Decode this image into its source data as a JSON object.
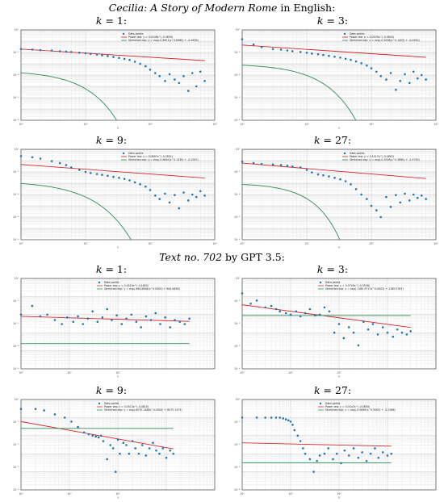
{
  "sections": [
    {
      "title_italic": "Cecilia: A Story of Modern Rome",
      "title_rest": " in English:"
    },
    {
      "title_italic": "Text no. 702",
      "title_rest": " by GPT 3.5:"
    }
  ],
  "colors": {
    "points": "#1f77b4",
    "power_law": "#d62728",
    "stretched_exp": "#2e8b57"
  },
  "chart_data": [
    {
      "type": "scatter",
      "label_prefix": "k = ",
      "k": "1:",
      "xscale": "log",
      "yscale": "log",
      "xlim": [
        1,
        1000
      ],
      "ylim": [
        1e-08,
        1
      ],
      "xticks": [
        "10⁰",
        "10¹",
        "10²",
        "10³"
      ],
      "yticks": [
        "10⁰",
        "10⁻²",
        "10⁻⁴",
        "10⁻⁶",
        "10⁻⁸"
      ],
      "xlabel": "x",
      "legend_position": "top-right",
      "legend": [
        "Data points",
        "Power law: y = 0.0246x^(-0.3639)",
        "Stretched exp: y = exp(-0.9651(x^0.8960) + -0.4639)"
      ],
      "x": [
        1,
        1.5,
        2,
        3,
        4,
        5,
        6,
        8,
        10,
        12,
        15,
        18,
        22,
        27,
        33,
        40,
        48,
        58,
        70,
        85,
        100,
        120,
        140,
        170,
        200,
        240,
        280,
        330,
        390,
        450,
        520,
        600,
        700
      ],
      "y": [
        0.02,
        0.018,
        0.016,
        0.015,
        0.013,
        0.012,
        0.011,
        0.0095,
        0.0085,
        0.0075,
        0.0065,
        0.0055,
        0.0048,
        0.004,
        0.0033,
        0.0027,
        0.0022,
        0.0015,
        0.001,
        0.0006,
        0.0003,
        0.00015,
        8e-05,
        3e-05,
        0.00012,
        4e-05,
        2e-05,
        8e-05,
        4e-06,
        0.00015,
        1e-05,
        0.0002,
        3e-05
      ],
      "power_law": {
        "a": 0.02,
        "b": -0.36
      },
      "stretched_exp": {
        "c": 0.47,
        "beta": 0.9,
        "d": -3.6
      }
    },
    {
      "type": "scatter",
      "label_prefix": "k = ",
      "k": "3:",
      "xscale": "log",
      "yscale": "log",
      "xlim": [
        1,
        1000
      ],
      "ylim": [
        1e-08,
        1
      ],
      "xticks": [
        "10⁰",
        "10¹",
        "10²",
        "10³"
      ],
      "yticks": [
        "10⁰",
        "10⁻²",
        "10⁻⁴",
        "10⁻⁶",
        "10⁻⁸"
      ],
      "xlabel": "x",
      "legend_position": "top-right",
      "legend": [
        "Data points",
        "Power law: y = 0.0535x^(-0.3843)",
        "Stretched exp: y = exp(-0.5098(x^0.1405) + -0.0620)"
      ],
      "x": [
        1,
        1.5,
        2,
        3,
        4,
        5,
        6,
        8,
        10,
        12,
        15,
        18,
        22,
        27,
        33,
        40,
        48,
        58,
        70,
        85,
        100,
        120,
        140,
        170,
        200,
        240,
        280,
        330,
        390,
        450,
        520,
        600,
        700
      ],
      "y": [
        0.15,
        0.05,
        0.03,
        0.02,
        0.018,
        0.015,
        0.013,
        0.011,
        0.0095,
        0.008,
        0.007,
        0.006,
        0.005,
        0.0042,
        0.0035,
        0.0028,
        0.0022,
        0.0016,
        0.0011,
        0.0007,
        0.0004,
        0.0002,
        8e-05,
        4e-05,
        0.00015,
        5e-06,
        3e-05,
        0.00012,
        2e-05,
        0.0002,
        5e-05,
        0.0001,
        4e-05
      ],
      "power_law": {
        "a": 0.045,
        "b": -0.38
      },
      "stretched_exp": {
        "c": 0.3,
        "beta": 0.9,
        "d": -3.0
      }
    },
    {
      "type": "scatter",
      "label_prefix": "k = ",
      "k": "9:",
      "xscale": "log",
      "yscale": "log",
      "xlim": [
        1,
        1000
      ],
      "ylim": [
        1e-08,
        1
      ],
      "xticks": [
        "10⁰",
        "10¹",
        "10²",
        "10³"
      ],
      "yticks": [
        "10⁰",
        "10⁻²",
        "10⁻⁴",
        "10⁻⁶",
        "10⁻⁸"
      ],
      "xlabel": "x",
      "legend_position": "top-right",
      "legend": [
        "Data points",
        "Power law: y = 0.0897x^(-0.4551)",
        "Stretched exp: y = exp(-0.9840(x^0.1330) + -0.2907)"
      ],
      "x": [
        1,
        1.5,
        2,
        3,
        4,
        5,
        6,
        8,
        10,
        12,
        15,
        18,
        22,
        27,
        33,
        40,
        48,
        58,
        70,
        85,
        100,
        120,
        140,
        170,
        200,
        240,
        280,
        330,
        390,
        450,
        520,
        600,
        700
      ],
      "y": [
        0.25,
        0.2,
        0.15,
        0.09,
        0.06,
        0.04,
        0.025,
        0.015,
        0.01,
        0.008,
        0.0065,
        0.0055,
        0.0045,
        0.0036,
        0.003,
        0.0024,
        0.0018,
        0.0012,
        0.0008,
        0.0005,
        0.00025,
        8e-05,
        4e-05,
        0.00012,
        2e-05,
        9e-05,
        6e-06,
        0.00015,
        3e-05,
        0.0001,
        6e-05,
        0.0002,
        8e-05
      ],
      "power_law": {
        "a": 0.045,
        "b": -0.42
      },
      "stretched_exp": {
        "c": 0.52,
        "beta": 0.8,
        "d": -2.8
      }
    },
    {
      "type": "scatter",
      "label_prefix": "k = ",
      "k": "27:",
      "xscale": "log",
      "yscale": "log",
      "xlim": [
        1,
        1000
      ],
      "ylim": [
        1e-08,
        1
      ],
      "xticks": [
        "10⁰",
        "10¹",
        "10²",
        "10³"
      ],
      "yticks": [
        "10⁰",
        "10⁻²",
        "10⁻⁴",
        "10⁻⁶",
        "10⁻⁸"
      ],
      "xlabel": "x",
      "legend_position": "top-right",
      "legend": [
        "Data points",
        "Power law: y = 0.1417x^(-0.4892)",
        "Stretched exp: y = exp(-0.2556(x^0.3660) + -2.9750)"
      ],
      "x": [
        1,
        1.5,
        2,
        3,
        4,
        5,
        6,
        8,
        10,
        12,
        15,
        18,
        22,
        27,
        33,
        40,
        48,
        58,
        70,
        85,
        100,
        120,
        140,
        170,
        200,
        240,
        280,
        330,
        390,
        450,
        520,
        600,
        700
      ],
      "y": [
        0.08,
        0.06,
        0.05,
        0.045,
        0.04,
        0.035,
        0.03,
        0.025,
        0.015,
        0.009,
        0.006,
        0.005,
        0.004,
        0.003,
        0.0022,
        0.0015,
        0.0008,
        0.0003,
        0.0001,
        4e-05,
        1e-05,
        4e-06,
        1e-06,
        6e-05,
        8e-06,
        9e-05,
        2e-05,
        0.00012,
        3e-05,
        0.0001,
        5e-05,
        8e-05,
        4e-05
      ],
      "power_law": {
        "a": 0.06,
        "b": -0.48
      },
      "stretched_exp": {
        "c": 0.25,
        "beta": 1.1,
        "d": -3.0
      }
    },
    {
      "type": "scatter",
      "label_prefix": "k = ",
      "k": "1:",
      "xscale": "log",
      "yscale": "log",
      "xlim": [
        1,
        10000
      ],
      "ylim": [
        0.0001,
        10
      ],
      "xticks": [
        "10⁰",
        "10¹",
        "10²"
      ],
      "yticks": [
        "10⁰",
        "10⁻¹",
        "10⁻²",
        "10⁻³",
        "10⁻⁴"
      ],
      "xlabel": "x",
      "legend_position": "top-right",
      "legend": [
        "Data points",
        "Power law: y = 0.0519x^(-0.1602)",
        "Stretched exp: y = exp(-964.9858(x^0.0000) + 964.9858)"
      ],
      "x": [
        1,
        1.7,
        2.5,
        3.5,
        5,
        7,
        9,
        12,
        15,
        19,
        24,
        30,
        38,
        48,
        60,
        75,
        95,
        120,
        150,
        190,
        240,
        300,
        380,
        480,
        600,
        750,
        950,
        1200,
        1500,
        1900,
        2400,
        3000
      ],
      "y": [
        0.1,
        0.3,
        0.08,
        0.1,
        0.05,
        0.03,
        0.07,
        0.04,
        0.08,
        0.03,
        0.06,
        0.15,
        0.04,
        0.07,
        0.2,
        0.05,
        0.09,
        0.03,
        0.06,
        0.1,
        0.04,
        0.02,
        0.08,
        0.05,
        0.12,
        0.03,
        0.07,
        0.02,
        0.05,
        0.04,
        0.03,
        0.06
      ],
      "power_law": {
        "a": 0.08,
        "b": -0.08
      },
      "stretched_exp": {
        "c": 0,
        "beta": 1,
        "d": -2.6
      }
    },
    {
      "type": "scatter",
      "label_prefix": "k = ",
      "k": "3:",
      "xscale": "log",
      "yscale": "log",
      "xlim": [
        1,
        10000
      ],
      "ylim": [
        0.0001,
        10
      ],
      "xticks": [
        "10⁰",
        "10¹",
        "10²"
      ],
      "yticks": [
        "10⁰",
        "10⁻¹",
        "10⁻²",
        "10⁻³",
        "10⁻⁴"
      ],
      "xlabel": "x",
      "legend_position": "top-right",
      "legend": [
        "Data points",
        "Power law: y = 0.0709x^(-0.3536)",
        "Stretched exp: y = exp(-1185.9717x^0.0003) + 1185.9763)"
      ],
      "x": [
        1,
        1.5,
        2,
        3,
        4,
        5,
        6,
        8,
        10,
        13,
        16,
        20,
        25,
        32,
        40,
        50,
        63,
        80,
        100,
        125,
        160,
        200,
        250,
        320,
        400,
        500,
        630,
        800,
        1000,
        1300,
        1600,
        2000,
        2500,
        3000
      ],
      "y": [
        1.5,
        0.4,
        0.6,
        0.25,
        0.3,
        0.2,
        0.15,
        0.12,
        0.1,
        0.15,
        0.08,
        0.12,
        0.2,
        0.09,
        0.1,
        0.25,
        0.15,
        0.01,
        0.03,
        0.005,
        0.02,
        0.01,
        0.002,
        0.04,
        0.015,
        0.03,
        0.008,
        0.02,
        0.01,
        0.006,
        0.015,
        0.01,
        0.008,
        0.012
      ],
      "power_law": {
        "a": 0.35,
        "b": -0.36
      },
      "stretched_exp": {
        "c": 0,
        "beta": 1,
        "d": -1.05
      }
    },
    {
      "type": "scatter",
      "label_prefix": "k = ",
      "k": "9:",
      "xscale": "log",
      "yscale": "log",
      "xlim": [
        1,
        10000
      ],
      "ylim": [
        0.0001,
        10
      ],
      "xticks": [
        "10⁰",
        "10¹",
        "10²"
      ],
      "yticks": [
        "10⁰",
        "10⁻¹",
        "10⁻²",
        "10⁻³",
        "10⁻⁴"
      ],
      "xlabel": "x",
      "legend_position": "top-right",
      "legend": [
        "Data points",
        "Power law: y = 0.0513x^(-0.4810)",
        "Stretched exp: y = exp(-8070.1486x^0.0000) + 8070.1473)"
      ],
      "x": [
        1,
        2,
        3,
        5,
        8,
        11,
        15,
        20,
        25,
        30,
        35,
        40,
        45,
        50,
        60,
        70,
        80,
        90,
        100,
        110,
        130,
        150,
        170,
        200,
        230,
        270,
        320,
        380,
        450,
        530,
        620,
        720,
        850,
        1000,
        1200,
        1400
      ],
      "y": [
        3,
        3,
        2.5,
        1.5,
        1,
        0.6,
        0.3,
        0.15,
        0.12,
        0.1,
        0.09,
        0.08,
        0.1,
        0.05,
        0.005,
        0.03,
        0.02,
        0.001,
        0.06,
        0.01,
        0.04,
        0.03,
        0.01,
        0.05,
        0.02,
        0.01,
        0.03,
        0.008,
        0.02,
        0.04,
        0.015,
        0.01,
        0.02,
        0.006,
        0.015,
        0.01
      ],
      "power_law": {
        "a": 0.6,
        "b": -0.48
      },
      "stretched_exp": {
        "c": 0,
        "beta": 1,
        "d": -0.6
      }
    },
    {
      "type": "scatter",
      "label_prefix": "k = ",
      "k": "27:",
      "xscale": "log",
      "yscale": "log",
      "xlim": [
        1,
        10000
      ],
      "ylim": [
        0.0001,
        10
      ],
      "xticks": [
        "10⁰",
        "10¹",
        "10²"
      ],
      "yticks": [
        "10⁰",
        "10⁻¹",
        "10⁻²",
        "10⁻³",
        "10⁻⁴"
      ],
      "xlabel": "x",
      "legend_position": "top-right",
      "legend": [
        "Data points",
        "Power law: y = 0.0047x^(-0.0850)",
        "Stretched exp: y = exp(-0.0896(x^0.9500) + -5.2986)"
      ],
      "x": [
        1,
        2,
        3,
        4,
        5,
        6,
        7,
        8,
        9,
        10,
        11,
        12,
        14,
        16,
        18,
        20,
        25,
        30,
        35,
        40,
        50,
        60,
        75,
        90,
        110,
        130,
        160,
        200,
        250,
        300,
        370,
        450,
        550,
        650,
        800,
        1000,
        1200
      ],
      "y": [
        1,
        1,
        1,
        1,
        1,
        1,
        0.9,
        0.8,
        0.7,
        0.6,
        0.4,
        0.2,
        0.1,
        0.05,
        0.02,
        0.01,
        0.005,
        0.001,
        0.004,
        0.008,
        0.01,
        0.02,
        0.005,
        0.01,
        0.003,
        0.015,
        0.008,
        0.02,
        0.006,
        0.012,
        0.004,
        0.01,
        0.02,
        0.006,
        0.012,
        0.008,
        0.01
      ],
      "power_law": {
        "a": 0.04,
        "b": -0.06
      },
      "stretched_exp": {
        "c": 0,
        "beta": 1,
        "d": -2.5
      }
    }
  ]
}
